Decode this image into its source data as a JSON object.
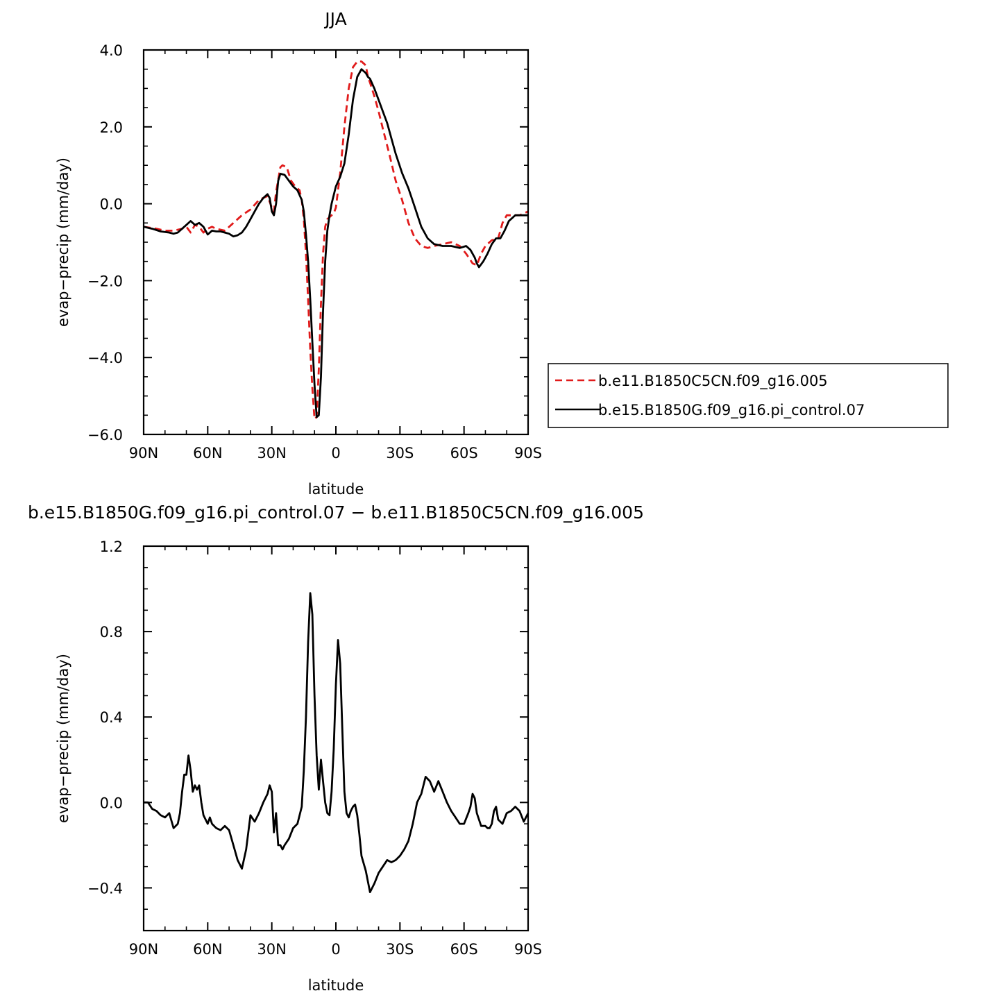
{
  "chart_data": [
    {
      "type": "line",
      "title": "JJA",
      "xlabel": "latitude",
      "ylabel": "evap−precip (mm/day)",
      "xlim": [
        -90,
        90
      ],
      "ylim": [
        -6.0,
        4.0
      ],
      "x_ticks": [
        -90,
        -60,
        -30,
        0,
        30,
        60,
        90
      ],
      "x_tick_labels": [
        "90N",
        "60N",
        "30N",
        "0",
        "30S",
        "60S",
        "90S"
      ],
      "y_ticks": [
        -6.0,
        -4.0,
        -2.0,
        0.0,
        2.0,
        4.0
      ],
      "y_tick_labels": [
        "−6.0",
        "−4.0",
        "−2.0",
        "0.0",
        "2.0",
        "4.0"
      ],
      "grid": false,
      "legend": "right",
      "series": [
        {
          "name": "b.e11.B1850C5CN.f09_g16.005",
          "color": "#e11b1b",
          "dash": true,
          "x": [
            -90,
            -84,
            -80,
            -76,
            -72,
            -70,
            -68,
            -66,
            -64,
            -62,
            -60,
            -58,
            -56,
            -52,
            -48,
            -44,
            -40,
            -36,
            -32,
            -30,
            -29,
            -28,
            -26,
            -25,
            -23,
            -21,
            -19,
            -17,
            -16,
            -15,
            -14,
            -13,
            -12,
            -11,
            -10,
            -9,
            -8,
            -7,
            -6,
            -5,
            -4,
            -3,
            -2,
            -1,
            0,
            2,
            4,
            6,
            8,
            10,
            12,
            14,
            15,
            16,
            18,
            20,
            22,
            25,
            28,
            31,
            34,
            37,
            40,
            43,
            46,
            50,
            54,
            58,
            61,
            64,
            66,
            68,
            70,
            73,
            76,
            78,
            80,
            83,
            86,
            88,
            90
          ],
          "y": [
            -0.6,
            -0.65,
            -0.7,
            -0.7,
            -0.65,
            -0.6,
            -0.75,
            -0.55,
            -0.6,
            -0.75,
            -0.65,
            -0.6,
            -0.65,
            -0.7,
            -0.5,
            -0.3,
            -0.15,
            0.1,
            0.2,
            -0.1,
            -0.2,
            0.3,
            0.95,
            1.0,
            0.95,
            0.6,
            0.45,
            0.35,
            0.1,
            -0.4,
            -1.3,
            -2.5,
            -3.8,
            -4.8,
            -5.6,
            -5.55,
            -4.3,
            -2.6,
            -1.3,
            -0.6,
            -0.4,
            -0.35,
            -0.3,
            -0.25,
            -0.1,
            0.8,
            2.0,
            3.0,
            3.55,
            3.7,
            3.7,
            3.6,
            3.3,
            3.15,
            2.8,
            2.4,
            1.95,
            1.3,
            0.6,
            0.1,
            -0.5,
            -0.9,
            -1.1,
            -1.15,
            -1.1,
            -1.05,
            -1.0,
            -1.1,
            -1.3,
            -1.55,
            -1.6,
            -1.3,
            -1.1,
            -0.95,
            -0.9,
            -0.5,
            -0.3,
            -0.3,
            -0.3,
            -0.25,
            -0.2
          ]
        },
        {
          "name": "b.e15.B1850G.f09_g16.pi_control.07",
          "color": "#000000",
          "dash": false,
          "x": [
            -90,
            -86,
            -82,
            -78,
            -76,
            -74,
            -72,
            -70,
            -68,
            -66,
            -64,
            -62,
            -60,
            -58,
            -56,
            -54,
            -52,
            -50,
            -48,
            -46,
            -44,
            -42,
            -40,
            -38,
            -36,
            -34,
            -32,
            -31,
            -30,
            -29,
            -28,
            -27,
            -26,
            -24,
            -22,
            -20,
            -18,
            -16,
            -15,
            -14,
            -13,
            -12,
            -11,
            -10,
            -9,
            -8,
            -7,
            -6,
            -5,
            -4,
            -3,
            -2,
            0,
            2,
            4,
            6,
            8,
            10,
            12,
            13,
            14,
            15,
            16,
            18,
            20,
            22,
            24,
            26,
            28,
            31,
            34,
            37,
            40,
            43,
            46,
            50,
            54,
            58,
            61,
            63,
            65,
            66,
            67,
            69,
            71,
            73,
            75,
            77,
            79,
            81,
            84,
            87,
            89,
            90
          ],
          "y": [
            -0.6,
            -0.65,
            -0.72,
            -0.75,
            -0.78,
            -0.75,
            -0.65,
            -0.55,
            -0.45,
            -0.55,
            -0.5,
            -0.6,
            -0.8,
            -0.7,
            -0.72,
            -0.72,
            -0.75,
            -0.78,
            -0.85,
            -0.82,
            -0.75,
            -0.6,
            -0.4,
            -0.2,
            0.0,
            0.15,
            0.25,
            0.15,
            -0.2,
            -0.3,
            0.0,
            0.6,
            0.78,
            0.75,
            0.6,
            0.45,
            0.35,
            0.1,
            -0.2,
            -0.8,
            -1.5,
            -2.5,
            -3.6,
            -4.7,
            -5.55,
            -5.5,
            -4.5,
            -2.8,
            -1.5,
            -0.7,
            -0.3,
            0.0,
            0.45,
            0.7,
            1.05,
            1.8,
            2.7,
            3.3,
            3.5,
            3.45,
            3.4,
            3.3,
            3.25,
            3.0,
            2.7,
            2.4,
            2.1,
            1.7,
            1.3,
            0.8,
            0.4,
            -0.1,
            -0.6,
            -0.9,
            -1.05,
            -1.1,
            -1.1,
            -1.15,
            -1.1,
            -1.2,
            -1.4,
            -1.55,
            -1.65,
            -1.5,
            -1.3,
            -1.05,
            -0.9,
            -0.9,
            -0.7,
            -0.45,
            -0.3,
            -0.3,
            -0.3,
            -0.3
          ]
        }
      ]
    },
    {
      "type": "line",
      "title": "b.e15.B1850G.f09_g16.pi_control.07 − b.e11.B1850C5CN.f09_g16.005",
      "xlabel": "latitude",
      "ylabel": "evap−precip (mm/day)",
      "xlim": [
        -90,
        90
      ],
      "ylim": [
        -0.6,
        1.2
      ],
      "x_ticks": [
        -90,
        -60,
        -30,
        0,
        30,
        60,
        90
      ],
      "x_tick_labels": [
        "90N",
        "60N",
        "30N",
        "0",
        "30S",
        "60S",
        "90S"
      ],
      "y_ticks": [
        -0.4,
        0.0,
        0.4,
        0.8,
        1.2
      ],
      "y_tick_labels": [
        "−0.4",
        "0.0",
        "0.4",
        "0.8",
        "1.2"
      ],
      "grid": false,
      "series": [
        {
          "name": "",
          "color": "#000000",
          "dash": false,
          "x": [
            -90,
            -88,
            -86,
            -84,
            -82,
            -80,
            -78,
            -76,
            -74,
            -73,
            -72,
            -71,
            -70,
            -69,
            -68,
            -67,
            -66,
            -65,
            -64,
            -63,
            -62,
            -60,
            -59,
            -58,
            -56,
            -54,
            -52,
            -50,
            -48,
            -46,
            -44,
            -42,
            -40,
            -38,
            -36,
            -34,
            -33,
            -32,
            -31,
            -30,
            -29,
            -28,
            -27,
            -26,
            -25,
            -24,
            -22,
            -20,
            -18,
            -16,
            -15,
            -14,
            -13,
            -12,
            -11,
            -10,
            -9,
            -8,
            -7,
            -6,
            -5,
            -4,
            -3,
            -2,
            -1,
            0,
            1,
            2,
            3,
            4,
            5,
            6,
            7,
            8,
            9,
            10,
            11,
            12,
            14,
            16,
            18,
            20,
            22,
            24,
            26,
            28,
            30,
            32,
            34,
            36,
            38,
            40,
            41,
            42,
            44,
            46,
            48,
            50,
            52,
            54,
            56,
            58,
            60,
            62,
            63,
            64,
            65,
            66,
            68,
            70,
            71,
            72,
            73,
            74,
            75,
            76,
            78,
            80,
            82,
            84,
            86,
            88,
            90
          ],
          "y": [
            0.0,
            0.0,
            -0.03,
            -0.04,
            -0.06,
            -0.07,
            -0.05,
            -0.12,
            -0.1,
            -0.05,
            0.05,
            0.13,
            0.13,
            0.22,
            0.15,
            0.05,
            0.08,
            0.06,
            0.08,
            0.0,
            -0.06,
            -0.1,
            -0.07,
            -0.1,
            -0.12,
            -0.13,
            -0.11,
            -0.13,
            -0.2,
            -0.27,
            -0.31,
            -0.22,
            -0.06,
            -0.09,
            -0.05,
            0.0,
            0.02,
            0.04,
            0.08,
            0.05,
            -0.14,
            -0.05,
            -0.2,
            -0.2,
            -0.22,
            -0.2,
            -0.17,
            -0.12,
            -0.1,
            -0.02,
            0.15,
            0.4,
            0.75,
            0.98,
            0.88,
            0.5,
            0.22,
            0.06,
            0.2,
            0.1,
            0.0,
            -0.05,
            -0.06,
            0.05,
            0.25,
            0.55,
            0.76,
            0.65,
            0.35,
            0.05,
            -0.05,
            -0.07,
            -0.04,
            -0.02,
            -0.01,
            -0.06,
            -0.15,
            -0.25,
            -0.32,
            -0.42,
            -0.38,
            -0.33,
            -0.3,
            -0.27,
            -0.28,
            -0.27,
            -0.25,
            -0.22,
            -0.18,
            -0.1,
            0.0,
            0.04,
            0.08,
            0.12,
            0.1,
            0.05,
            0.1,
            0.05,
            0.0,
            -0.04,
            -0.07,
            -0.1,
            -0.1,
            -0.05,
            -0.02,
            0.04,
            0.02,
            -0.05,
            -0.11,
            -0.11,
            -0.12,
            -0.12,
            -0.1,
            -0.04,
            -0.02,
            -0.08,
            -0.1,
            -0.05,
            -0.04,
            -0.02,
            -0.04,
            -0.09,
            -0.05
          ]
        }
      ]
    }
  ]
}
